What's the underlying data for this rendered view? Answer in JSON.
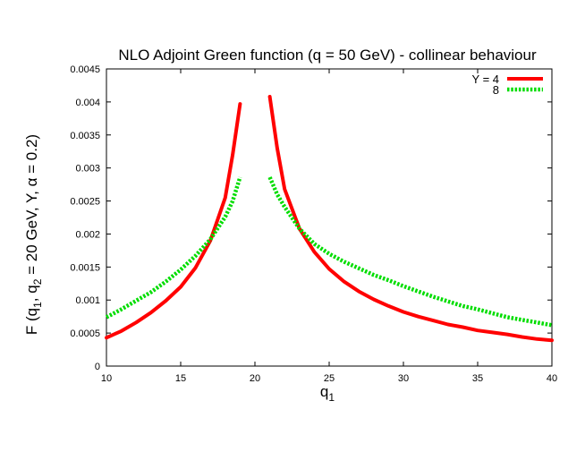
{
  "chart_data": {
    "type": "line",
    "title": "NLO Adjoint Green function (q = 50 GeV) - collinear behaviour",
    "xlabel_main": "q",
    "xlabel_sub": "1",
    "ylabel_parts": [
      {
        "t": "F (q"
      },
      {
        "t": "1",
        "sub": true
      },
      {
        "t": ", q"
      },
      {
        "t": "2",
        "sub": true
      },
      {
        "t": " = 20 GeV, Y, α = 0.2)"
      }
    ],
    "xlim": [
      10,
      40
    ],
    "ylim": [
      0,
      0.0045
    ],
    "xticks": [
      10,
      15,
      20,
      25,
      30,
      35,
      40
    ],
    "yticks": [
      0,
      0.0005,
      0.001,
      0.0015,
      0.002,
      0.0025,
      0.003,
      0.0035,
      0.004,
      0.0045
    ],
    "ytick_labels": [
      "0",
      "0.0005",
      "0.001",
      "0.0015",
      "0.002",
      "0.0025",
      "0.003",
      "0.0035",
      "0.004",
      "0.0045"
    ],
    "grid": false,
    "legend_position": "top-right",
    "series": [
      {
        "name": "Y = 4",
        "color": "#ff0000",
        "style": "solid",
        "segments": [
          [
            [
              10,
              0.00043
            ],
            [
              11,
              0.00053
            ],
            [
              12,
              0.00066
            ],
            [
              13,
              0.00081
            ],
            [
              14,
              0.00099
            ],
            [
              15,
              0.0012
            ],
            [
              16,
              0.00149
            ],
            [
              17,
              0.0019
            ],
            [
              18,
              0.00255
            ],
            [
              18.5,
              0.0032
            ],
            [
              19,
              0.00397
            ]
          ],
          [
            [
              21,
              0.00408
            ],
            [
              21.5,
              0.0033
            ],
            [
              22,
              0.00268
            ],
            [
              23,
              0.00208
            ],
            [
              24,
              0.00173
            ],
            [
              25,
              0.00147
            ],
            [
              26,
              0.00128
            ],
            [
              27,
              0.00113
            ],
            [
              28,
              0.00101
            ],
            [
              29,
              0.00091
            ],
            [
              30,
              0.00082
            ],
            [
              31,
              0.00075
            ],
            [
              32,
              0.00069
            ],
            [
              33,
              0.00063
            ],
            [
              34,
              0.00059
            ],
            [
              35,
              0.00054
            ],
            [
              36,
              0.00051
            ],
            [
              37,
              0.00048
            ],
            [
              38,
              0.00044
            ],
            [
              39,
              0.00041
            ],
            [
              40,
              0.00039
            ]
          ]
        ]
      },
      {
        "name": "8",
        "color": "#00dd00",
        "style": "dotted",
        "segments": [
          [
            [
              10,
              0.00074
            ],
            [
              11,
              0.00086
            ],
            [
              12,
              0.00099
            ],
            [
              13,
              0.00112
            ],
            [
              14,
              0.00128
            ],
            [
              15,
              0.00146
            ],
            [
              16,
              0.00167
            ],
            [
              17,
              0.00192
            ],
            [
              18,
              0.00226
            ],
            [
              18.5,
              0.0025
            ],
            [
              19,
              0.00286
            ]
          ],
          [
            [
              21,
              0.00286
            ],
            [
              21.5,
              0.0026
            ],
            [
              22,
              0.00241
            ],
            [
              23,
              0.00208
            ],
            [
              24,
              0.00185
            ],
            [
              25,
              0.0017
            ],
            [
              26,
              0.00158
            ],
            [
              27,
              0.00148
            ],
            [
              28,
              0.00138
            ],
            [
              29,
              0.0013
            ],
            [
              30,
              0.00121
            ],
            [
              31,
              0.00113
            ],
            [
              32,
              0.00105
            ],
            [
              33,
              0.00098
            ],
            [
              34,
              0.00091
            ],
            [
              35,
              0.00086
            ],
            [
              36,
              0.0008
            ],
            [
              37,
              0.00074
            ],
            [
              38,
              0.0007
            ],
            [
              39,
              0.00066
            ],
            [
              40,
              0.00062
            ]
          ]
        ]
      }
    ]
  }
}
